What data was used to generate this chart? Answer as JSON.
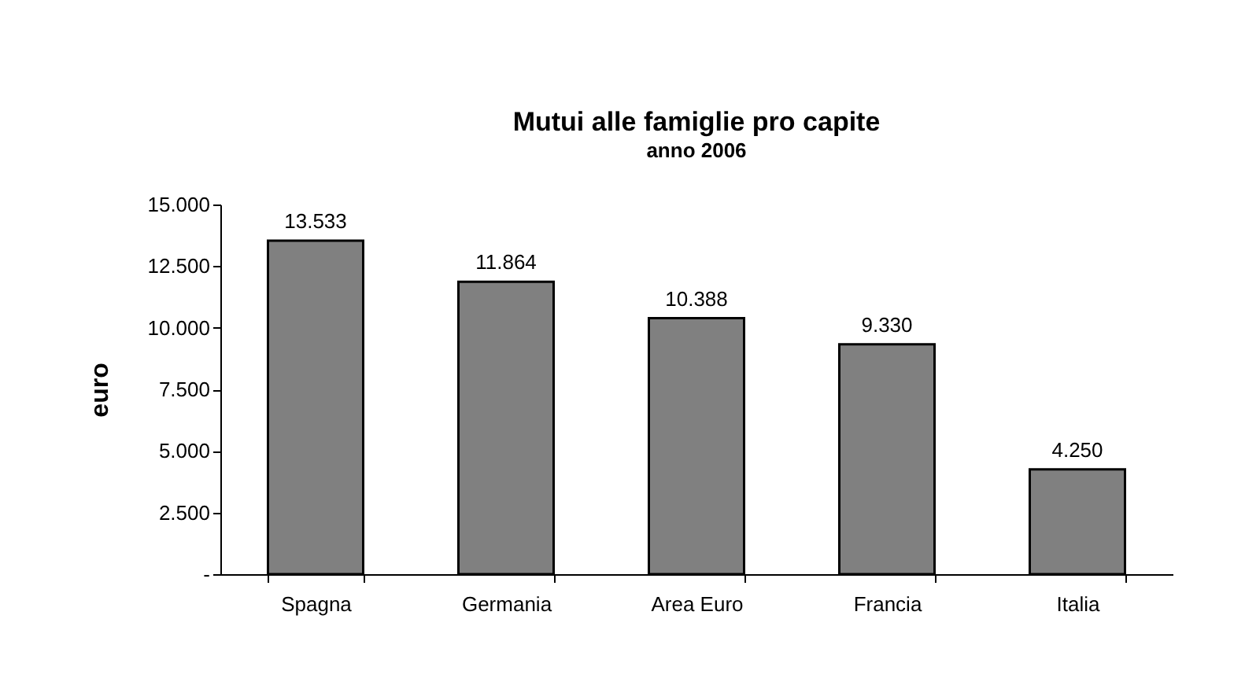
{
  "chart_data": {
    "type": "bar",
    "title": "Mutui alle famiglie pro capite",
    "subtitle": "anno 2006",
    "ylabel": "euro",
    "categories": [
      "Spagna",
      "Germania",
      "Area Euro",
      "Francia",
      "Italia"
    ],
    "values": [
      13533,
      11864,
      10388,
      9330,
      4250
    ],
    "value_labels": [
      "13.533",
      "11.864",
      "10.388",
      "9.330",
      "4.250"
    ],
    "color": "#808080",
    "ylim": [
      0,
      15000
    ],
    "yticks": [
      {
        "value": 0,
        "label": "-"
      },
      {
        "value": 2500,
        "label": "2.500"
      },
      {
        "value": 5000,
        "label": "5.000"
      },
      {
        "value": 7500,
        "label": "7.500"
      },
      {
        "value": 10000,
        "label": "10.000"
      },
      {
        "value": 12500,
        "label": "12.500"
      },
      {
        "value": 15000,
        "label": "15.000"
      }
    ],
    "grid": false
  }
}
